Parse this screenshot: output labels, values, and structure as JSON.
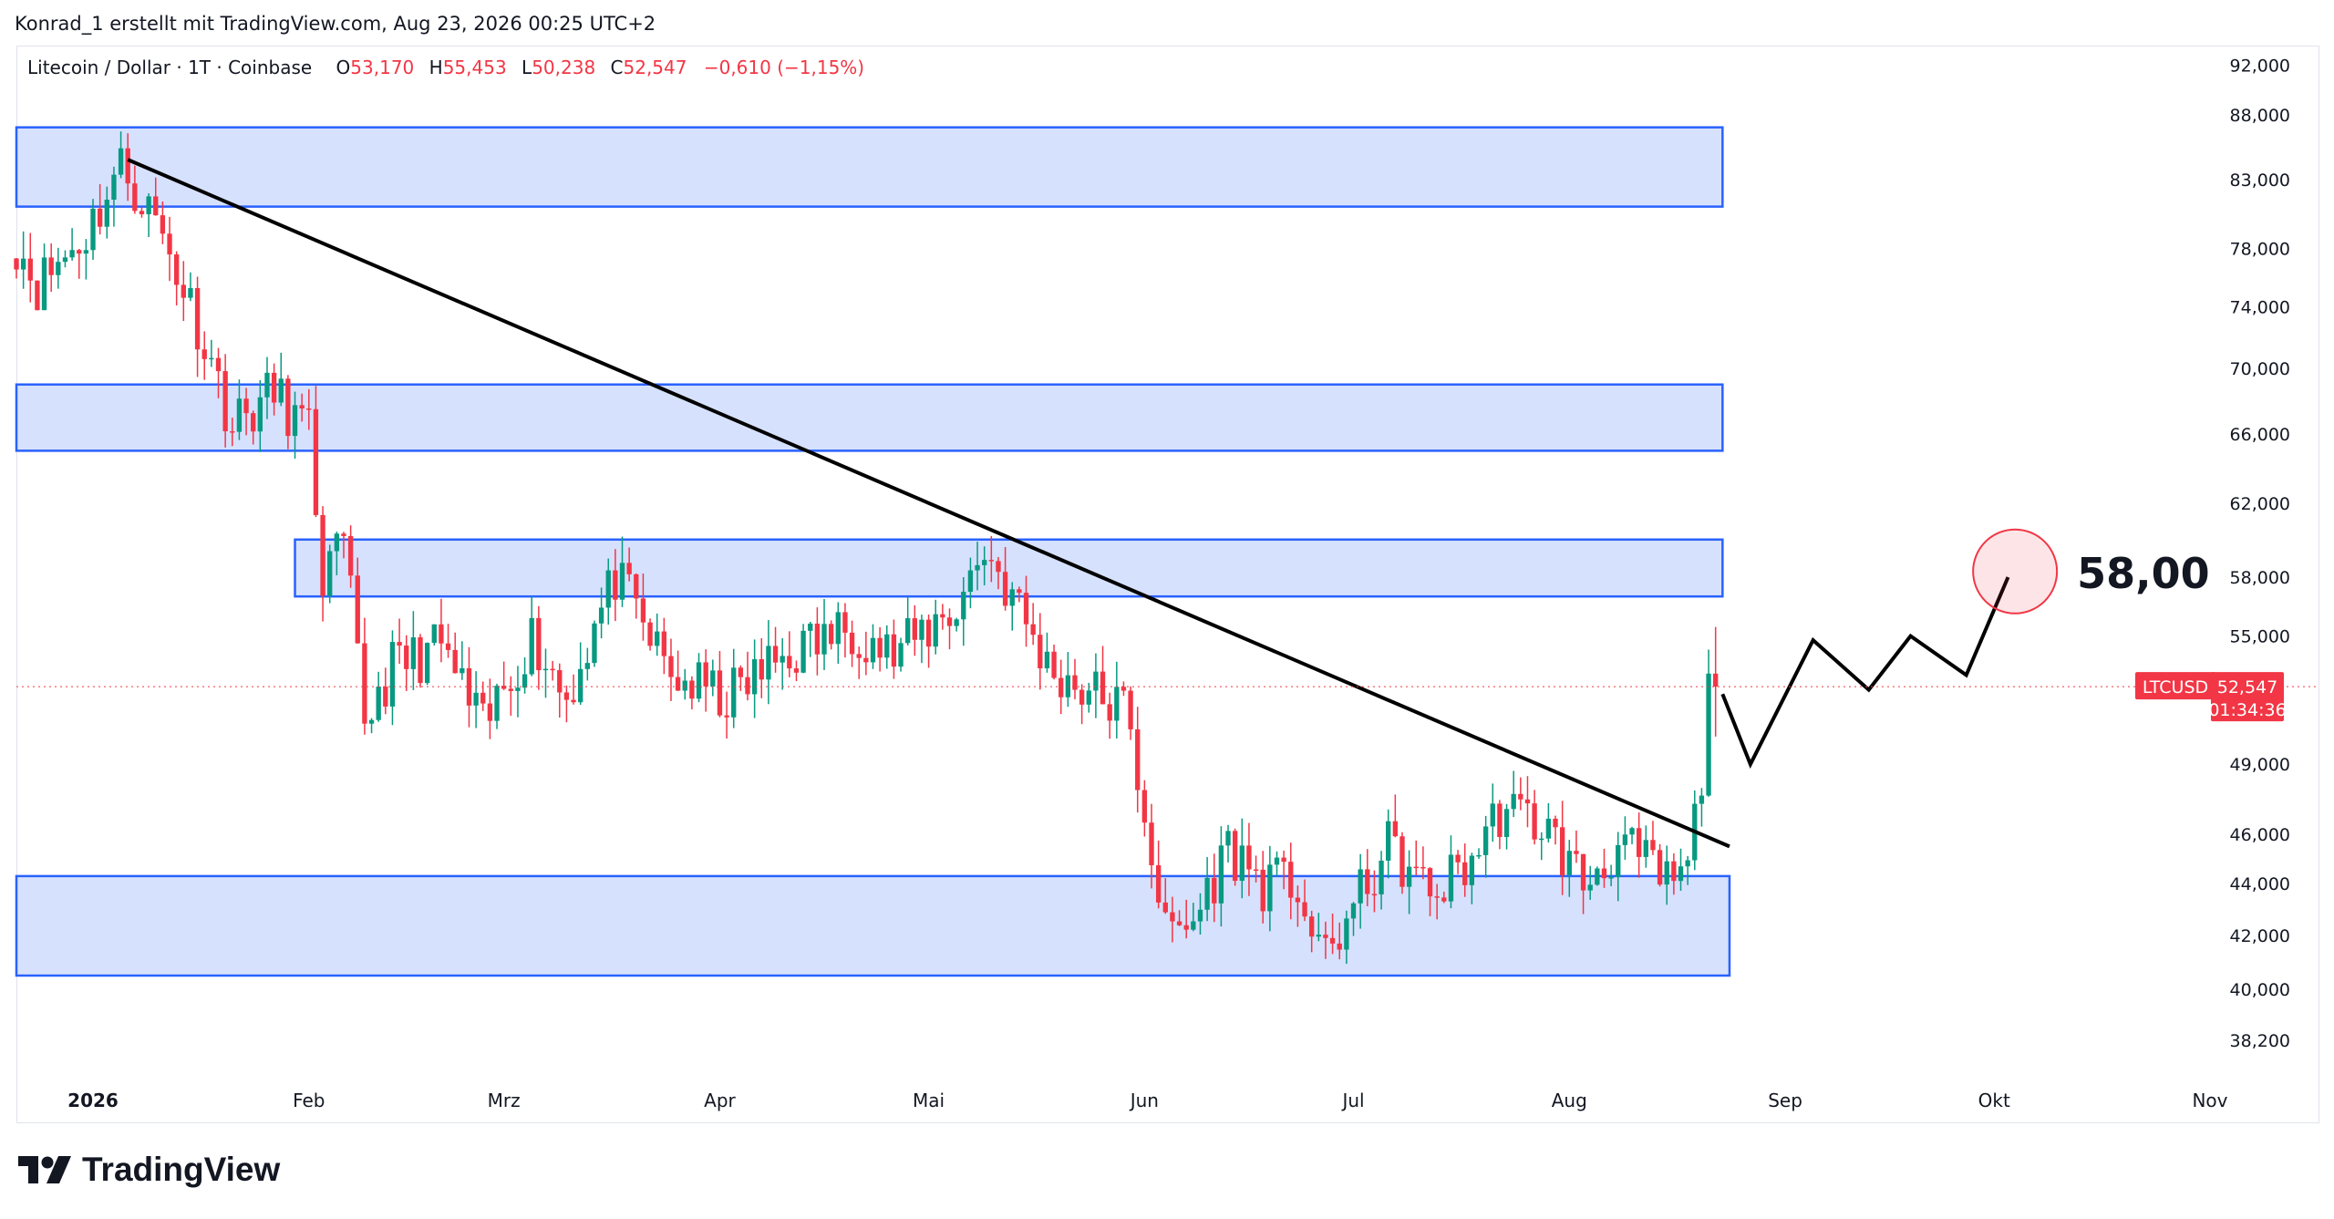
{
  "credit": "Konrad_1 erstellt mit TradingView.com, Aug 23, 2026 00:25 UTC+2",
  "legend": {
    "symbol": "Litecoin / Dollar · 1T · Coinbase",
    "open_label": "O",
    "open": "53,170",
    "high_label": "H",
    "high": "55,453",
    "low_label": "L",
    "low": "50,238",
    "close_label": "C",
    "close": "52,547",
    "change": "−0,610 (−1,15%)"
  },
  "price_badge": {
    "ticker": "LTCUSD",
    "price": "52,547",
    "countdown": "01:34:36"
  },
  "annotation": {
    "target_text": "58,00"
  },
  "brand": {
    "name": "TradingView"
  },
  "colors": {
    "up": "#089981",
    "down": "#f23645",
    "zone_fill": "#d6e1fd",
    "zone_border": "#2962ff",
    "trend": "#000000"
  },
  "chart_data": {
    "type": "candlestick",
    "scale": "log",
    "ylim": [
      37000,
      93500
    ],
    "y_ticks": [
      {
        "value": 92000,
        "label": "92,000"
      },
      {
        "value": 88000,
        "label": "88,000"
      },
      {
        "value": 83000,
        "label": "83,000"
      },
      {
        "value": 78000,
        "label": "78,000"
      },
      {
        "value": 74000,
        "label": "74,000"
      },
      {
        "value": 70000,
        "label": "70,000"
      },
      {
        "value": 66000,
        "label": "66,000"
      },
      {
        "value": 62000,
        "label": "62,000"
      },
      {
        "value": 58000,
        "label": "58,000"
      },
      {
        "value": 55000,
        "label": "55,000"
      },
      {
        "value": 49000,
        "label": "49,000"
      },
      {
        "value": 46000,
        "label": "46,000"
      },
      {
        "value": 44000,
        "label": "44,000"
      },
      {
        "value": 42000,
        "label": "42,000"
      },
      {
        "value": 40000,
        "label": "40,000"
      },
      {
        "value": 38200,
        "label": "38,200"
      }
    ],
    "x_range": [
      "2025-12-21",
      "2026-11-01"
    ],
    "x_ticks": [
      {
        "date": "2026-01-01",
        "label": "2026",
        "bold": true
      },
      {
        "date": "2026-02-01",
        "label": "Feb"
      },
      {
        "date": "2026-03-01",
        "label": "Mrz"
      },
      {
        "date": "2026-04-01",
        "label": "Apr"
      },
      {
        "date": "2026-05-01",
        "label": "Mai"
      },
      {
        "date": "2026-06-01",
        "label": "Jun"
      },
      {
        "date": "2026-07-01",
        "label": "Jul"
      },
      {
        "date": "2026-08-01",
        "label": "Aug"
      },
      {
        "date": "2026-09-01",
        "label": "Sep"
      },
      {
        "date": "2026-10-01",
        "label": "Okt"
      },
      {
        "date": "2026-11-01",
        "label": "Nov"
      }
    ],
    "keypoints": [
      {
        "date": "2025-12-21",
        "price": 78500
      },
      {
        "date": "2025-12-24",
        "price": 75500
      },
      {
        "date": "2025-12-31",
        "price": 79000
      },
      {
        "date": "2026-01-05",
        "price": 84000
      },
      {
        "date": "2026-01-10",
        "price": 80000
      },
      {
        "date": "2026-01-16",
        "price": 73000
      },
      {
        "date": "2026-01-21",
        "price": 66500
      },
      {
        "date": "2026-01-27",
        "price": 68500
      },
      {
        "date": "2026-02-01",
        "price": 66000
      },
      {
        "date": "2026-02-03",
        "price": 58000
      },
      {
        "date": "2026-02-06",
        "price": 59500
      },
      {
        "date": "2026-02-09",
        "price": 51000
      },
      {
        "date": "2026-02-13",
        "price": 53500
      },
      {
        "date": "2026-02-20",
        "price": 54500
      },
      {
        "date": "2026-02-26",
        "price": 50500
      },
      {
        "date": "2026-03-05",
        "price": 55000
      },
      {
        "date": "2026-03-10",
        "price": 52000
      },
      {
        "date": "2026-03-17",
        "price": 58000
      },
      {
        "date": "2026-03-25",
        "price": 53000
      },
      {
        "date": "2026-04-02",
        "price": 52000
      },
      {
        "date": "2026-04-10",
        "price": 54000
      },
      {
        "date": "2026-04-20",
        "price": 55500
      },
      {
        "date": "2026-04-26",
        "price": 54000
      },
      {
        "date": "2026-05-05",
        "price": 56500
      },
      {
        "date": "2026-05-09",
        "price": 59500
      },
      {
        "date": "2026-05-13",
        "price": 57000
      },
      {
        "date": "2026-05-18",
        "price": 53500
      },
      {
        "date": "2026-05-23",
        "price": 52500
      },
      {
        "date": "2026-05-29",
        "price": 51500
      },
      {
        "date": "2026-06-01",
        "price": 47000
      },
      {
        "date": "2026-06-04",
        "price": 42000
      },
      {
        "date": "2026-06-08",
        "price": 42500
      },
      {
        "date": "2026-06-13",
        "price": 45500
      },
      {
        "date": "2026-06-18",
        "price": 44000
      },
      {
        "date": "2026-06-23",
        "price": 44000
      },
      {
        "date": "2026-06-26",
        "price": 41000
      },
      {
        "date": "2026-06-30",
        "price": 42500
      },
      {
        "date": "2026-07-06",
        "price": 45500
      },
      {
        "date": "2026-07-12",
        "price": 43500
      },
      {
        "date": "2026-07-18",
        "price": 45000
      },
      {
        "date": "2026-07-22",
        "price": 47000
      },
      {
        "date": "2026-07-28",
        "price": 46500
      },
      {
        "date": "2026-08-03",
        "price": 44000
      },
      {
        "date": "2026-08-08",
        "price": 45500
      },
      {
        "date": "2026-08-11",
        "price": 45000
      },
      {
        "date": "2026-08-15",
        "price": 44000
      },
      {
        "date": "2026-08-18",
        "price": 44500
      },
      {
        "date": "2026-08-20",
        "price": 48500
      },
      {
        "date": "2026-08-21",
        "price": 53170
      },
      {
        "date": "2026-08-22",
        "price": 52547
      }
    ],
    "zones": [
      {
        "start": "2025-12-21",
        "end": "2026-08-23",
        "low": 81000,
        "high": 87000
      },
      {
        "start": "2025-12-21",
        "end": "2026-08-23",
        "low": 65000,
        "high": 69000
      },
      {
        "start": "2026-01-30",
        "end": "2026-08-23",
        "low": 57000,
        "high": 60000
      },
      {
        "start": "2025-12-21",
        "end": "2026-08-24",
        "low": 40500,
        "high": 44300
      }
    ],
    "trendline": {
      "start": {
        "date": "2026-01-06",
        "price": 84500
      },
      "end": {
        "date": "2026-08-24",
        "price": 45500
      }
    },
    "projection": [
      {
        "date": "2026-08-23",
        "price": 52200
      },
      {
        "date": "2026-08-27",
        "price": 49000
      },
      {
        "date": "2026-09-05",
        "price": 54800
      },
      {
        "date": "2026-09-13",
        "price": 52400
      },
      {
        "date": "2026-09-19",
        "price": 55000
      },
      {
        "date": "2026-09-27",
        "price": 53100
      },
      {
        "date": "2026-10-03",
        "price": 58000
      }
    ],
    "target_circle": {
      "date": "2026-10-04",
      "price": 58300
    }
  }
}
